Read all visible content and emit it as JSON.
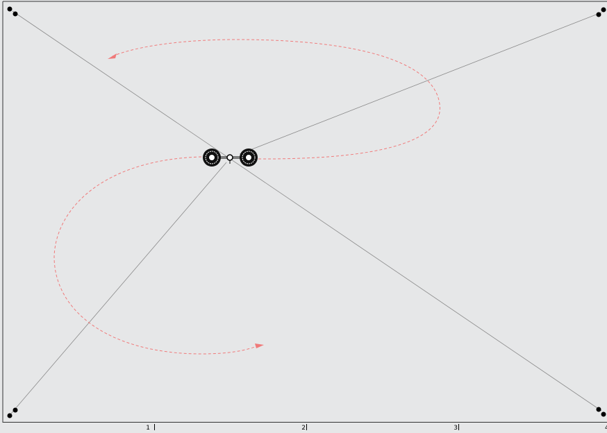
{
  "ruler": {
    "labels": [
      "1",
      "2",
      "3",
      "4"
    ]
  }
}
